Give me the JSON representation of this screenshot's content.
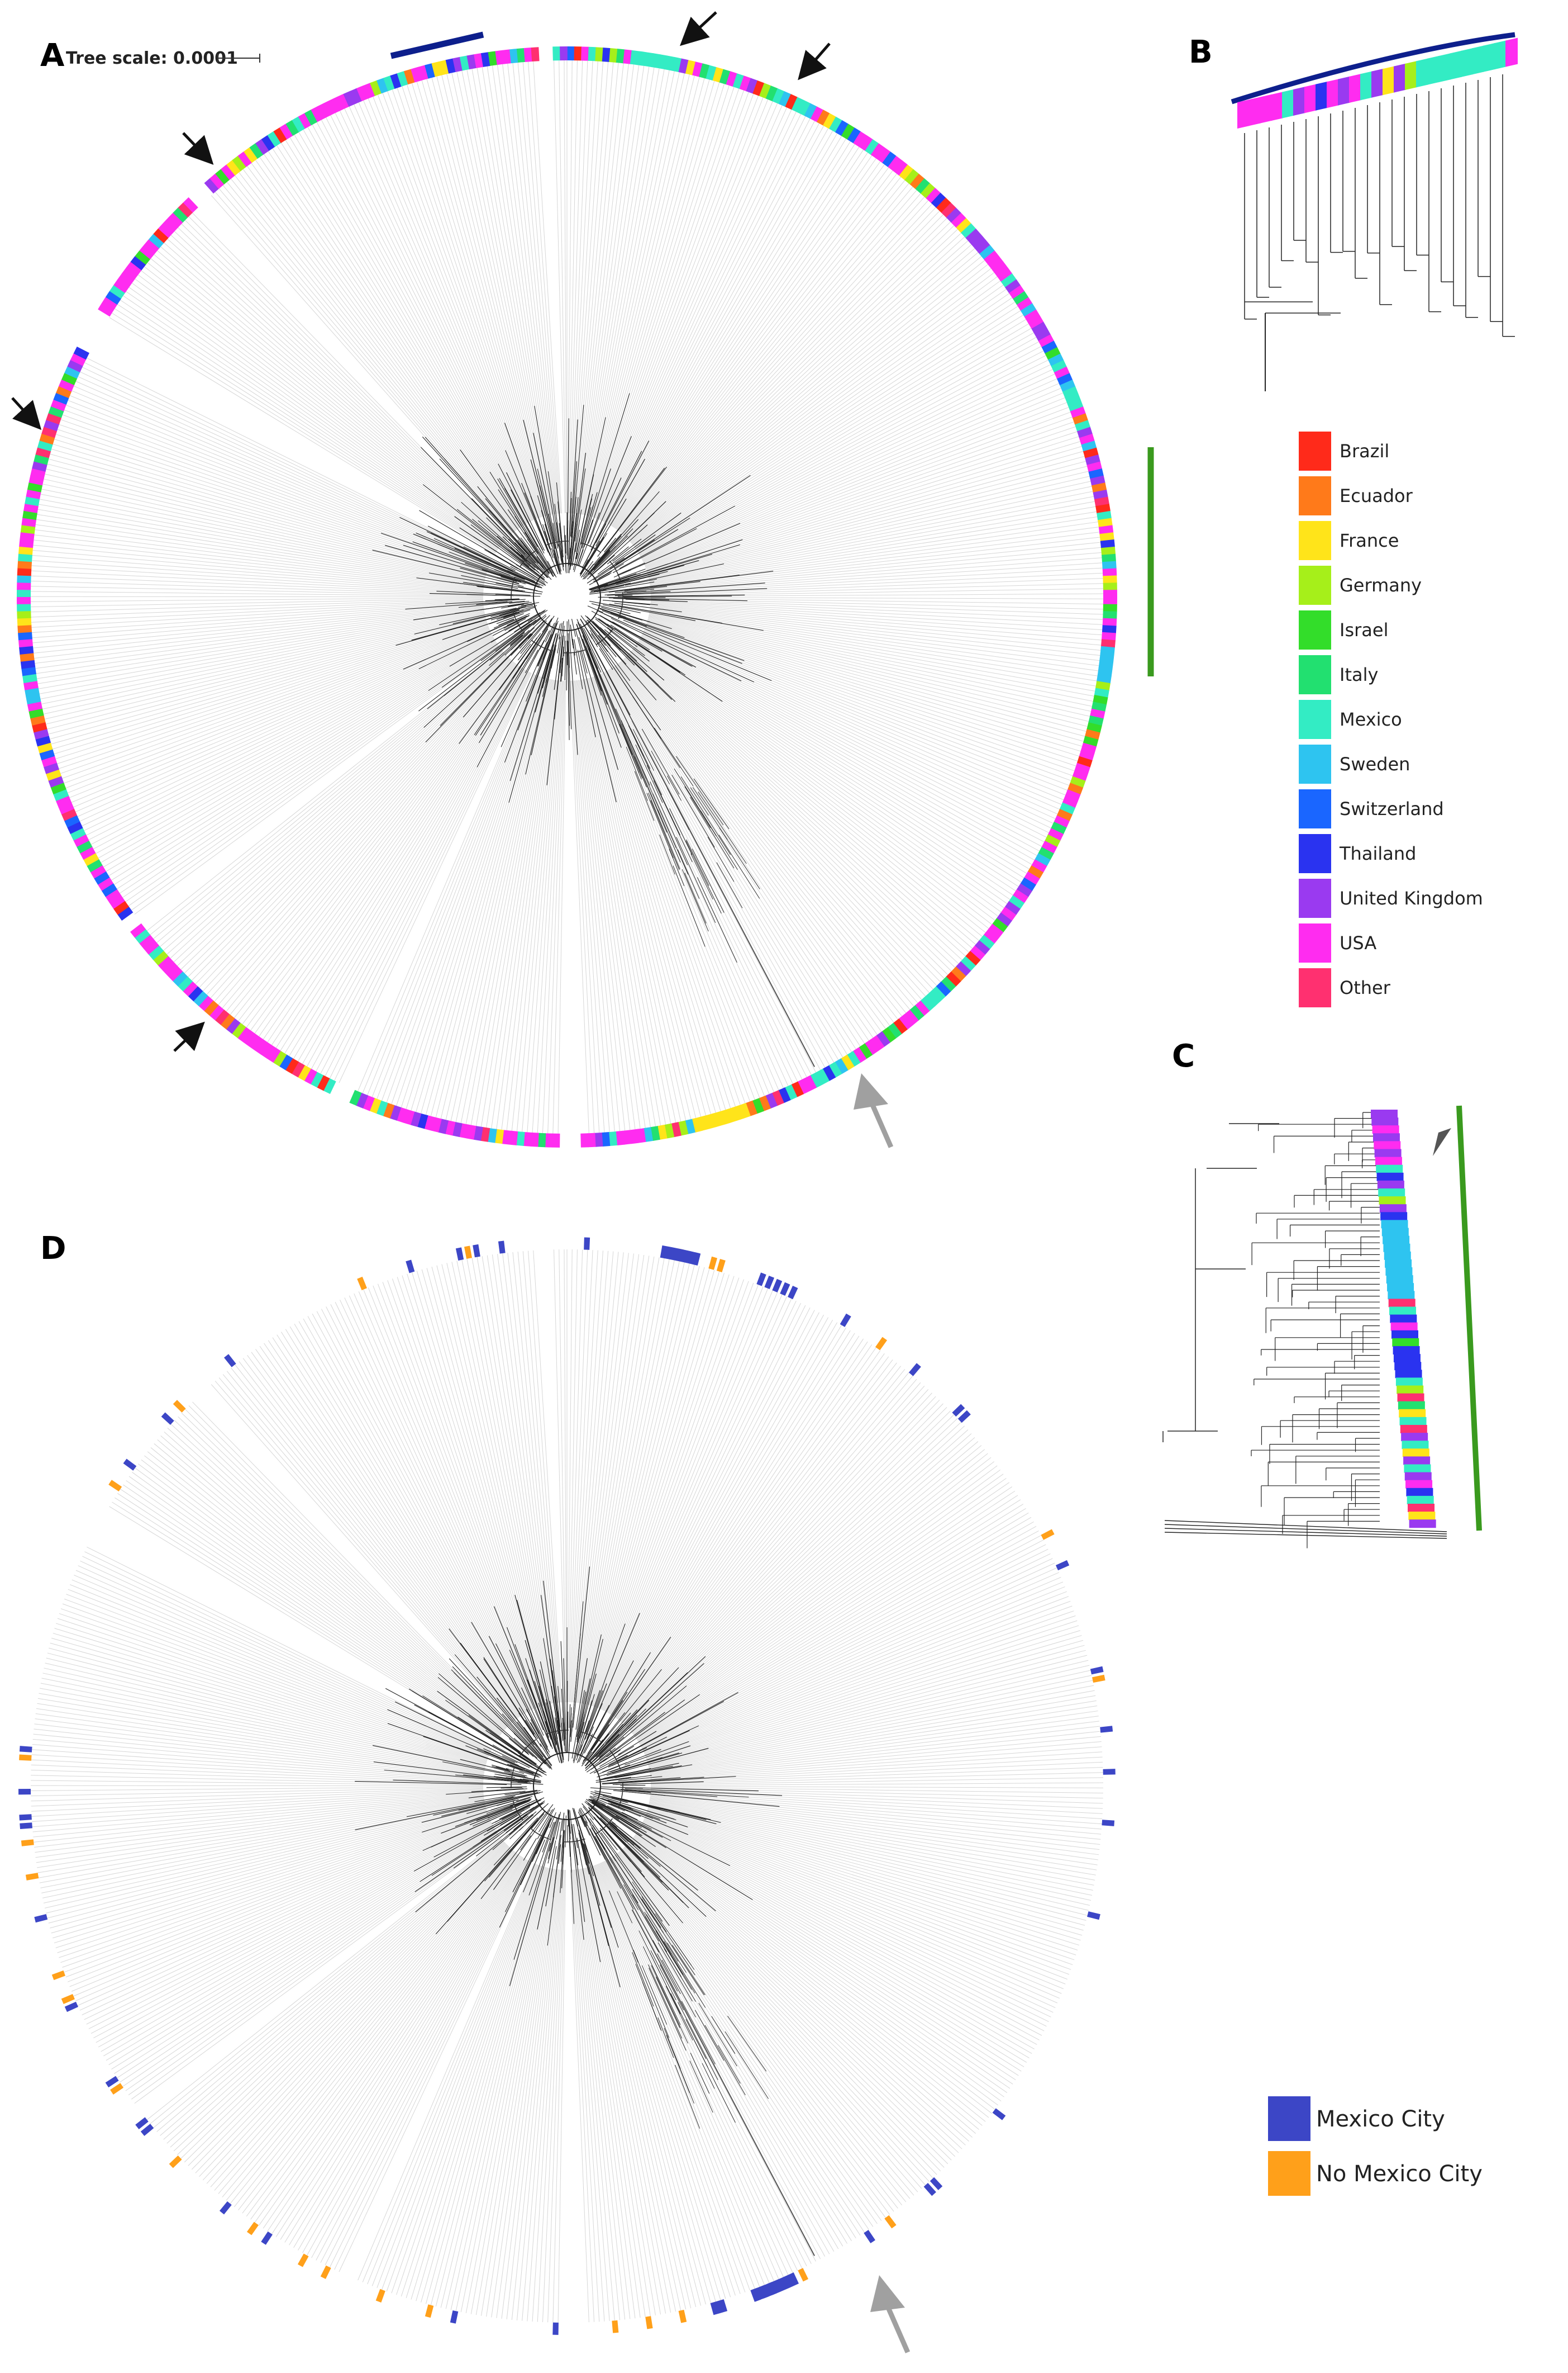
{
  "panels": {
    "a": {
      "letter": "A",
      "scale_text": "Tree scale: 0.0001"
    },
    "b": {
      "letter": "B"
    },
    "c": {
      "letter": "C"
    },
    "d": {
      "letter": "D"
    }
  },
  "legend_country": {
    "items": [
      {
        "label": "Brazil",
        "color": "#ff2a1a"
      },
      {
        "label": "Ecuador",
        "color": "#ff7a1a"
      },
      {
        "label": "France",
        "color": "#ffe41a"
      },
      {
        "label": "Germany",
        "color": "#a6ef1a"
      },
      {
        "label": "Israel",
        "color": "#33dd2a"
      },
      {
        "label": "Italy",
        "color": "#22e070"
      },
      {
        "label": "Mexico",
        "color": "#33ecc4"
      },
      {
        "label": "Sweden",
        "color": "#2ec4f0"
      },
      {
        "label": "Switzerland",
        "color": "#1a66ff"
      },
      {
        "label": "Thailand",
        "color": "#2a33f0"
      },
      {
        "label": "United Kingdom",
        "color": "#9a3af0"
      },
      {
        "label": "USA",
        "color": "#ff2cf0"
      },
      {
        "label": "Other",
        "color": "#ff3070"
      }
    ]
  },
  "legend_city": {
    "items": [
      {
        "label": "Mexico City",
        "color": "#3c46c6"
      },
      {
        "label": "No Mexico City",
        "color": "#ffa01a"
      }
    ]
  },
  "colors": {
    "highlight_blue": "#0d1f8c",
    "highlight_green": "#3a9a1e",
    "arrow_gray": "#a0a0a0",
    "branch": "#222222",
    "leaf_line": "#d6d6d6"
  }
}
